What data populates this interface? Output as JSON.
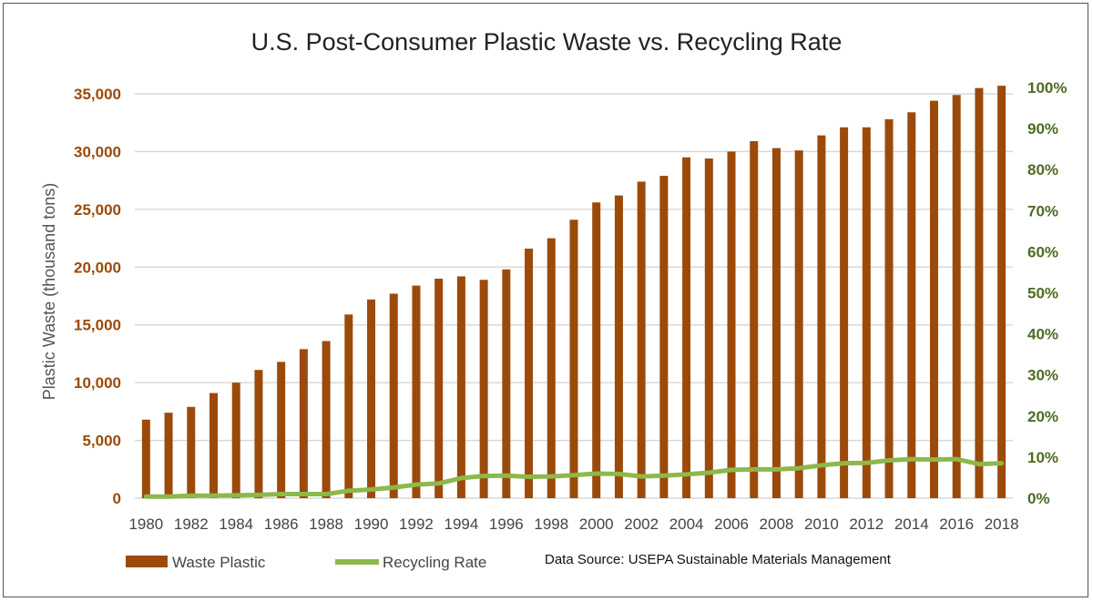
{
  "chart_data": {
    "type": "bar+line",
    "title": "U.S. Post-Consumer  Plastic Waste vs. Recycling Rate",
    "ylabel": "Plastic Waste  (thousand tons)",
    "ylim": [
      0,
      35000
    ],
    "y_ticks": [
      "0",
      "5,000",
      "10,000",
      "15,000",
      "20,000",
      "25,000",
      "30,000",
      "35,000"
    ],
    "y2lim": [
      0,
      100
    ],
    "y2_ticks": [
      "0%",
      "10%",
      "20%",
      "30%",
      "40%",
      "50%",
      "60%",
      "70%",
      "80%",
      "90%",
      "100%"
    ],
    "x": [
      1980,
      1981,
      1982,
      1983,
      1984,
      1985,
      1986,
      1987,
      1988,
      1989,
      1990,
      1991,
      1992,
      1993,
      1994,
      1995,
      1996,
      1997,
      1998,
      1999,
      2000,
      2001,
      2002,
      2003,
      2004,
      2005,
      2006,
      2007,
      2008,
      2009,
      2010,
      2011,
      2012,
      2013,
      2014,
      2015,
      2016,
      2017,
      2018
    ],
    "x_tick_labels": [
      "1980",
      "1982",
      "1984",
      "1986",
      "1988",
      "1990",
      "1992",
      "1994",
      "1996",
      "1998",
      "2000",
      "2002",
      "2004",
      "2006",
      "2008",
      "2010",
      "2012",
      "2014",
      "2016",
      "2018"
    ],
    "grid": true,
    "legend_placement": "bottom-left",
    "series": [
      {
        "name": "Waste Plastic",
        "type": "bar",
        "axis": "left",
        "color": "#9c4a0a",
        "values": [
          6800,
          7400,
          7900,
          9100,
          10000,
          11100,
          11800,
          12900,
          13600,
          15900,
          17200,
          17700,
          18400,
          19000,
          19200,
          18900,
          19800,
          21600,
          22500,
          24100,
          25600,
          26200,
          27400,
          27900,
          29500,
          29400,
          30000,
          30900,
          30300,
          30100,
          31400,
          32100,
          32100,
          32800,
          33400,
          34400,
          34900,
          35500,
          35700
        ]
      },
      {
        "name": "Recycling Rate",
        "type": "line",
        "axis": "right",
        "unit": "%",
        "color": "#8db84a",
        "values": [
          0.4,
          0.4,
          0.6,
          0.6,
          0.7,
          0.8,
          1.0,
          1.0,
          1.0,
          1.8,
          2.1,
          2.6,
          3.3,
          3.6,
          4.9,
          5.4,
          5.5,
          5.2,
          5.3,
          5.6,
          6.0,
          5.9,
          5.3,
          5.5,
          5.8,
          6.2,
          6.9,
          7.0,
          7.0,
          7.3,
          8.0,
          8.5,
          8.6,
          9.2,
          9.5,
          9.4,
          9.5,
          8.3,
          8.5
        ]
      }
    ],
    "annotation": "Data Source: USEPA Sustainable Materials Management"
  }
}
